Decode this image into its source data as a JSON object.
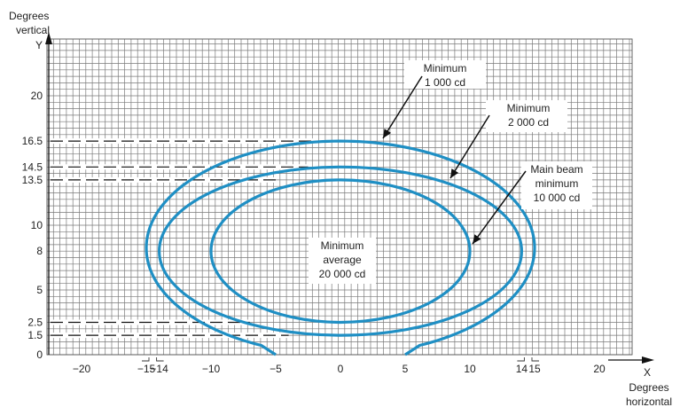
{
  "chart_data": {
    "type": "diagram",
    "title": "",
    "y_axis": {
      "label_lines": [
        "Degrees",
        "vertical"
      ],
      "letter": "Y",
      "ticks": [
        "0",
        "1.5",
        "2.5",
        "5",
        "8",
        "10",
        "13.5",
        "14.5",
        "16.5",
        "20"
      ],
      "range": [
        0,
        23
      ]
    },
    "x_axis": {
      "letter": "X",
      "label_lines": [
        "Degrees",
        "horizontal"
      ],
      "ticks": [
        "−20",
        "−15",
        "−14",
        "−10",
        "−5",
        "0",
        "5",
        "10",
        "14",
        "15",
        "20"
      ],
      "range": [
        -22.5,
        23.5
      ]
    },
    "grid": true,
    "curve_color": "#1f8fc4",
    "curves": [
      {
        "name": "Minimum 1 000 cd",
        "x_range": [
          -15,
          15
        ],
        "y_range": [
          0,
          16.5
        ],
        "open_bottom": true,
        "bottom_x": [
          -5,
          5
        ]
      },
      {
        "name": "Minimum 2 000 cd",
        "x_range": [
          -14,
          14
        ],
        "y_range": [
          1.5,
          14.5
        ]
      },
      {
        "name": "Main beam minimum 10 000 cd",
        "x_range": [
          -10,
          10
        ],
        "y_range": [
          2.5,
          13.5
        ]
      }
    ],
    "dashed_reference_levels": [
      16.5,
      14.5,
      13.5,
      2.5,
      1.5
    ],
    "annotations": [
      {
        "id": "min1000",
        "lines": [
          "Minimum",
          "1 000 cd"
        ]
      },
      {
        "id": "min2000",
        "lines": [
          "Minimum",
          "2 000 cd"
        ]
      },
      {
        "id": "mainbeam",
        "lines": [
          "Main beam",
          "minimum",
          "10 000 cd"
        ]
      },
      {
        "id": "center",
        "lines": [
          "Minimum",
          "average",
          "20 000 cd"
        ]
      }
    ]
  }
}
